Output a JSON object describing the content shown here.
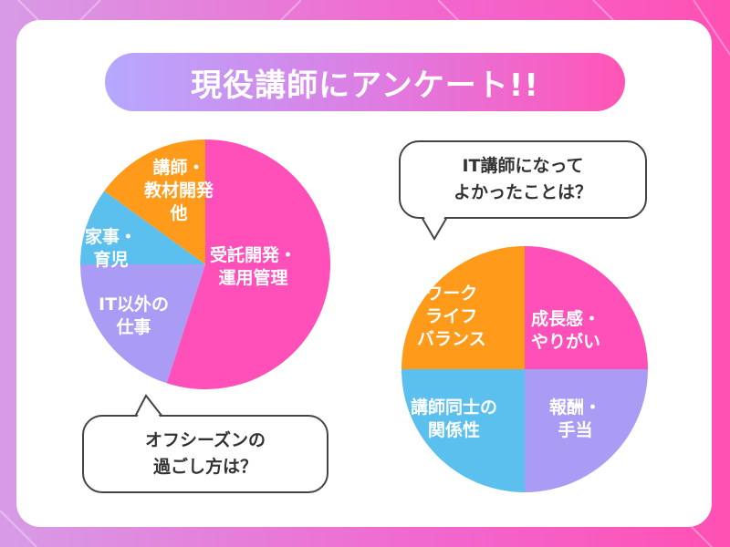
{
  "title": "現役講師にアンケート!!",
  "colors": {
    "pink": "#ff4fb8",
    "orange": "#ff9a1a",
    "blue": "#5bc0ee",
    "purple": "#aa9cf5"
  },
  "chart_data": [
    {
      "type": "pie",
      "title": "オフシーズンの\n過ごし方は？",
      "categories": [
        "受託開発・\n運用管理",
        "IT以外の\n仕事",
        "家事・\n育児",
        "講師・\n教材開発\n他"
      ],
      "values": [
        55,
        20,
        10,
        15
      ],
      "colors": [
        "#ff4fb8",
        "#aa9cf5",
        "#5bc0ee",
        "#ff9a1a"
      ]
    },
    {
      "type": "pie",
      "title": "IT講師になって\nよかったことは？",
      "categories": [
        "成長感・\nやりがい",
        "報酬・\n手当",
        "講師同士の\n関係性",
        "ワーク\nライフ\nバランス"
      ],
      "values": [
        25,
        25,
        25,
        25
      ],
      "colors": [
        "#ff4fb8",
        "#aa9cf5",
        "#5bc0ee",
        "#ff9a1a"
      ]
    }
  ]
}
